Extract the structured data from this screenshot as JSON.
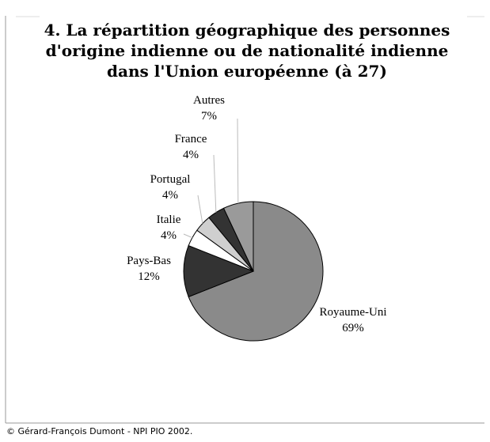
{
  "chart_data": {
    "type": "pie",
    "title": [
      "4. La répartition géographique des personnes",
      "d'origine indienne  ou de nationalité indienne",
      "dans l'Union européenne (à 27)"
    ],
    "categories": [
      "Royaume-Uni",
      "Pays-Bas",
      "Italie",
      "Portugal",
      "France",
      "Autres"
    ],
    "values": [
      69,
      12,
      4,
      4,
      4,
      7
    ],
    "value_labels": [
      "69%",
      "12%",
      "4%",
      "4%",
      "4%",
      "7%"
    ],
    "colors": [
      "#8a8a8a",
      "#333333",
      "#ffffff",
      "#cfcfcf",
      "#333333",
      "#9a9a9a"
    ],
    "source": "© Gérard-François Dumont - NPI PIO 2002."
  }
}
